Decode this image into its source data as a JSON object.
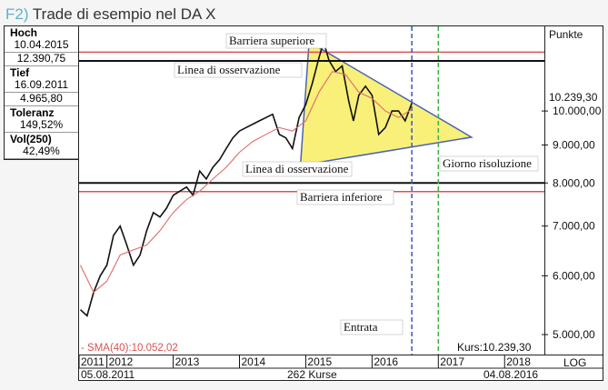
{
  "title_num": "F2)",
  "title_text": "Trade di esempio nel DA X",
  "stats": [
    {
      "label": "Hoch",
      "values": [
        "10.04.2015",
        "12.390,75"
      ]
    },
    {
      "label": "Tief",
      "values": [
        "16.09.2011",
        "4.965,80"
      ]
    },
    {
      "label": "Toleranz",
      "values": [
        "149,52%"
      ]
    },
    {
      "label": "Vol(250)",
      "values": [
        "42,49%"
      ]
    }
  ],
  "axis_title": "Punkte",
  "current_price_label": "10.239,30",
  "sma_label": "- SMA(40):10.052,02",
  "kurs_label": "Kurs:10.239,30",
  "footer": {
    "start_date": "05.08.2011",
    "count_label": "262 Kurse",
    "end_date": "04.08.2016",
    "scale_label": "LOG"
  },
  "annotations": {
    "upper_barrier": "Barriera superiore",
    "upper_observation": "Linea di osservazione",
    "lower_observation": "Linea di osservazione",
    "lower_barrier": "Barriera inferiore",
    "resolution_day": "Giorno risoluzione",
    "entry": "Entrata"
  },
  "chart_data": {
    "type": "line",
    "scale": "log",
    "ylim": [
      4700,
      13000
    ],
    "yticks": [
      "5.000,00",
      "6.000,00",
      "7.000,00",
      "8.000,00",
      "9.000,00",
      "10.000,00"
    ],
    "ytick_values": [
      5000,
      6000,
      7000,
      8000,
      9000,
      10000
    ],
    "xticks": [
      "2011",
      "2012",
      "2013",
      "2014",
      "2015",
      "2016",
      "2017",
      "2018"
    ],
    "xtick_values": [
      2011.58,
      2012.0,
      2013.0,
      2014.0,
      2015.0,
      2016.0,
      2017.0,
      2018.0
    ],
    "xlim": [
      2011.58,
      2018.6
    ],
    "series": [
      {
        "name": "DAX",
        "color": "#111111",
        "x": [
          2011.6,
          2011.7,
          2011.8,
          2011.9,
          2012.0,
          2012.1,
          2012.2,
          2012.3,
          2012.4,
          2012.5,
          2012.6,
          2012.7,
          2012.8,
          2012.9,
          2013.0,
          2013.1,
          2013.2,
          2013.3,
          2013.4,
          2013.5,
          2013.6,
          2013.7,
          2013.8,
          2013.9,
          2014.0,
          2014.1,
          2014.2,
          2014.3,
          2014.4,
          2014.5,
          2014.6,
          2014.7,
          2014.8,
          2014.9,
          2015.0,
          2015.1,
          2015.2,
          2015.27,
          2015.35,
          2015.45,
          2015.55,
          2015.65,
          2015.72,
          2015.8,
          2015.9,
          2016.0,
          2016.1,
          2016.2,
          2016.3,
          2016.4,
          2016.5,
          2016.6
        ],
        "values": [
          5400,
          5300,
          5700,
          6000,
          6200,
          6800,
          7000,
          6600,
          6200,
          6400,
          6900,
          7300,
          7200,
          7400,
          7700,
          7800,
          7900,
          7700,
          8300,
          8100,
          8400,
          8600,
          8900,
          9200,
          9400,
          9500,
          9600,
          9700,
          9800,
          9900,
          9300,
          9200,
          8900,
          9800,
          10200,
          10900,
          11800,
          12390,
          11700,
          11300,
          11500,
          10300,
          9700,
          10500,
          10800,
          10500,
          9300,
          9500,
          10000,
          10000,
          9700,
          10239
        ]
      },
      {
        "name": "SMA(40)",
        "color": "#e06a6a",
        "x": [
          2011.6,
          2011.8,
          2012.0,
          2012.2,
          2012.4,
          2012.6,
          2012.8,
          2013.0,
          2013.2,
          2013.4,
          2013.6,
          2013.8,
          2014.0,
          2014.2,
          2014.4,
          2014.6,
          2014.8,
          2015.0,
          2015.2,
          2015.4,
          2015.6,
          2015.8,
          2016.0,
          2016.2,
          2016.4,
          2016.6
        ],
        "values": [
          6200,
          5700,
          5900,
          6400,
          6500,
          6600,
          6900,
          7300,
          7600,
          7800,
          8100,
          8400,
          8800,
          9100,
          9300,
          9500,
          9400,
          9700,
          10600,
          11300,
          11200,
          10600,
          10400,
          10000,
          9800,
          10052
        ]
      }
    ],
    "levels": {
      "upper_barrier": 12000,
      "upper_observation": 11680,
      "lower_observation": 8000,
      "lower_barrier": 7790
    },
    "triangle": [
      [
        2015.05,
        12390
      ],
      [
        2014.92,
        8450
      ],
      [
        2017.5,
        9220
      ]
    ],
    "vlines": {
      "entry": 2016.6,
      "resolution_day": 2017.0
    }
  }
}
